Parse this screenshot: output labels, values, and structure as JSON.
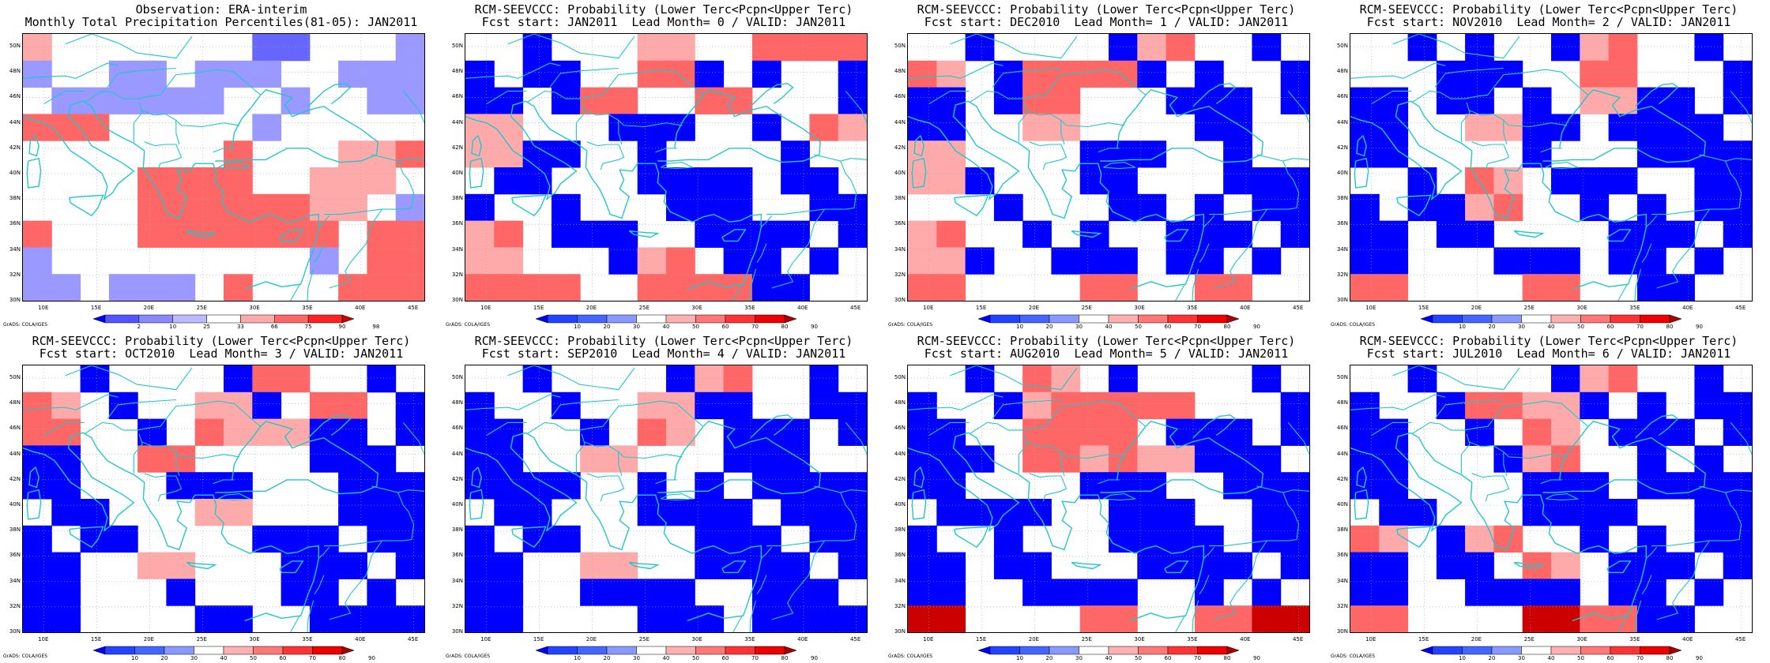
{
  "figure": {
    "credit": "GrADS: COLA/IGES",
    "lat_labels": [
      "30N",
      "32N",
      "34N",
      "36N",
      "38N",
      "40N",
      "42N",
      "44N",
      "46N",
      "48N",
      "50N"
    ],
    "lon_labels": [
      "10E",
      "15E",
      "20E",
      "25E",
      "30E",
      "35E",
      "40E",
      "45E"
    ],
    "colors": {
      "coastline": "#20c8c8",
      "grid": "#aaaaaa"
    }
  },
  "panels": [
    {
      "title1": "Observation: ERA-interim",
      "title2": "Monthly Total Precipitation Percentiles(81-05): JAN2011",
      "legend_labels": [
        "2",
        "10",
        "25",
        "33",
        "66",
        "75",
        "90",
        "98"
      ],
      "legend_colors": [
        "#0000ff",
        "#5555ff",
        "#8888ff",
        "#bbbbff",
        "#ffffff",
        "#ffaaaa",
        "#ff6666",
        "#ff2222",
        "#cc0000"
      ],
      "grid_codes": [
        "...9...",
        "..9....",
        "99..9.2",
        "22.....",
        "99.2.22",
        ".2....2",
        ".......",
        ".9.....",
        ".......",
        "......."
      ]
    },
    {
      "title1": "RCM-SEEVCCC: Probability (Lower Terc<Pcpn<Upper Terc)",
      "title2": "Fcst start: JAN2011  Lead Month= 0 / VALID: JAN2011",
      "legend_labels": [
        "10",
        "20",
        "30",
        "40",
        "50",
        "60",
        "70",
        "80",
        "90"
      ],
      "legend_colors": [
        "#0000ff",
        "#2244ff",
        "#4466ff",
        "#8899ff",
        "#ffffff",
        "#ffb0b0",
        "#ff7777",
        "#ff3333",
        "#ee0000",
        "#aa0000"
      ],
      "grid_codes": "panel-1"
    },
    {
      "title1": "RCM-SEEVCCC: Probability (Lower Terc<Pcpn<Upper Terc)",
      "title2": "Fcst start: DEC2010  Lead Month= 1 / VALID: JAN2011",
      "legend_labels": [
        "10",
        "20",
        "30",
        "40",
        "50",
        "60",
        "70",
        "80",
        "90"
      ],
      "legend_colors": [
        "#0000ff",
        "#2244ff",
        "#4466ff",
        "#8899ff",
        "#ffffff",
        "#ffb0b0",
        "#ff7777",
        "#ff3333",
        "#ee0000",
        "#aa0000"
      ],
      "grid_codes": "panel-2"
    },
    {
      "title1": "RCM-SEEVCCC: Probability (Lower Terc<Pcpn<Upper Terc)",
      "title2": "Fcst start: NOV2010  Lead Month= 2 / VALID: JAN2011",
      "legend_labels": [
        "10",
        "20",
        "30",
        "40",
        "50",
        "60",
        "70",
        "80",
        "90"
      ],
      "legend_colors": [
        "#0000ff",
        "#2244ff",
        "#4466ff",
        "#8899ff",
        "#ffffff",
        "#ffb0b0",
        "#ff7777",
        "#ff3333",
        "#ee0000",
        "#aa0000"
      ],
      "grid_codes": "panel-3"
    },
    {
      "title1": "RCM-SEEVCCC: Probability (Lower Terc<Pcpn<Upper Terc)",
      "title2": "Fcst start: OCT2010  Lead Month= 3 / VALID: JAN2011",
      "legend_labels": [
        "10",
        "20",
        "30",
        "40",
        "50",
        "60",
        "70",
        "80",
        "90"
      ],
      "legend_colors": [
        "#0000ff",
        "#2244ff",
        "#4466ff",
        "#8899ff",
        "#ffffff",
        "#ffb0b0",
        "#ff7777",
        "#ff3333",
        "#ee0000",
        "#aa0000"
      ],
      "grid_codes": "panel-4"
    },
    {
      "title1": "RCM-SEEVCCC: Probability (Lower Terc<Pcpn<Upper Terc)",
      "title2": "Fcst start: SEP2010  Lead Month= 4 / VALID: JAN2011",
      "legend_labels": [
        "10",
        "20",
        "30",
        "40",
        "50",
        "60",
        "70",
        "80",
        "90"
      ],
      "legend_colors": [
        "#0000ff",
        "#2244ff",
        "#4466ff",
        "#8899ff",
        "#ffffff",
        "#ffb0b0",
        "#ff7777",
        "#ff3333",
        "#ee0000",
        "#aa0000"
      ],
      "grid_codes": "panel-5"
    },
    {
      "title1": "RCM-SEEVCCC: Probability (Lower Terc<Pcpn<Upper Terc)",
      "title2": "Fcst start: AUG2010  Lead Month= 5 / VALID: JAN2011",
      "legend_labels": [
        "10",
        "20",
        "30",
        "40",
        "50",
        "60",
        "70",
        "80",
        "90"
      ],
      "legend_colors": [
        "#0000ff",
        "#2244ff",
        "#4466ff",
        "#8899ff",
        "#ffffff",
        "#ffb0b0",
        "#ff7777",
        "#ff3333",
        "#ee0000",
        "#aa0000"
      ],
      "grid_codes": "panel-6"
    },
    {
      "title1": "RCM-SEEVCCC: Probability (Lower Terc<Pcpn<Upper Terc)",
      "title2": "Fcst start: JUL2010  Lead Month= 6 / VALID: JAN2011",
      "legend_labels": [
        "10",
        "20",
        "30",
        "40",
        "50",
        "60",
        "70",
        "80",
        "90"
      ],
      "legend_colors": [
        "#0000ff",
        "#2244ff",
        "#4466ff",
        "#8899ff",
        "#ffffff",
        "#ffb0b0",
        "#ff7777",
        "#ff3333",
        "#ee0000",
        "#aa0000"
      ],
      "grid_codes": "panel-7"
    }
  ]
}
